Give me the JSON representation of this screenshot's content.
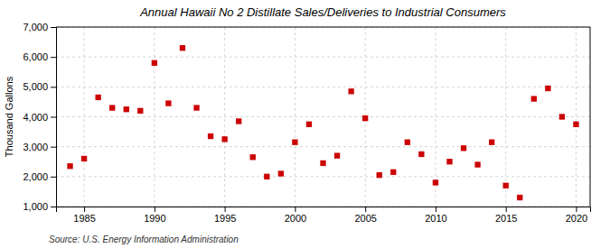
{
  "chart_data": {
    "type": "scatter",
    "title": "Annual Hawaii No 2 Distillate Sales/Deliveries to Industrial Consumers",
    "ylabel": "Thousand Gallons",
    "annotation": "Source: U.S. Energy Information Administration",
    "x": [
      1984,
      1985,
      1986,
      1987,
      1988,
      1989,
      1990,
      1991,
      1992,
      1993,
      1994,
      1995,
      1996,
      1997,
      1998,
      1999,
      2000,
      2001,
      2002,
      2003,
      2004,
      2005,
      2006,
      2007,
      2008,
      2009,
      2010,
      2011,
      2012,
      2013,
      2014,
      2015,
      2016,
      2017,
      2018,
      2019,
      2020
    ],
    "values": [
      2350,
      2600,
      4650,
      4300,
      4250,
      4200,
      5800,
      4450,
      6300,
      4300,
      3350,
      3250,
      3850,
      2650,
      2000,
      2100,
      3150,
      3750,
      2450,
      2700,
      4850,
      3950,
      2050,
      2150,
      3150,
      2750,
      1800,
      2500,
      2950,
      2400,
      3150,
      1700,
      1300,
      4600,
      4950,
      4000,
      3750
    ],
    "color": "#cc0000",
    "marker": "square",
    "xlim": [
      1983,
      2021
    ],
    "xticks": [
      1985,
      1990,
      1995,
      2000,
      2005,
      2010,
      2015,
      2020
    ],
    "ylim": [
      1000,
      7000
    ],
    "yticks": [
      {
        "value": 1000,
        "label": "1,000"
      },
      {
        "value": 2000,
        "label": "2,000"
      },
      {
        "value": 3000,
        "label": "3,000"
      },
      {
        "value": 4000,
        "label": "4,000"
      },
      {
        "value": 5000,
        "label": "5,000"
      },
      {
        "value": 6000,
        "label": "6,000"
      },
      {
        "value": 7000,
        "label": "7,000"
      }
    ],
    "grid": true
  }
}
